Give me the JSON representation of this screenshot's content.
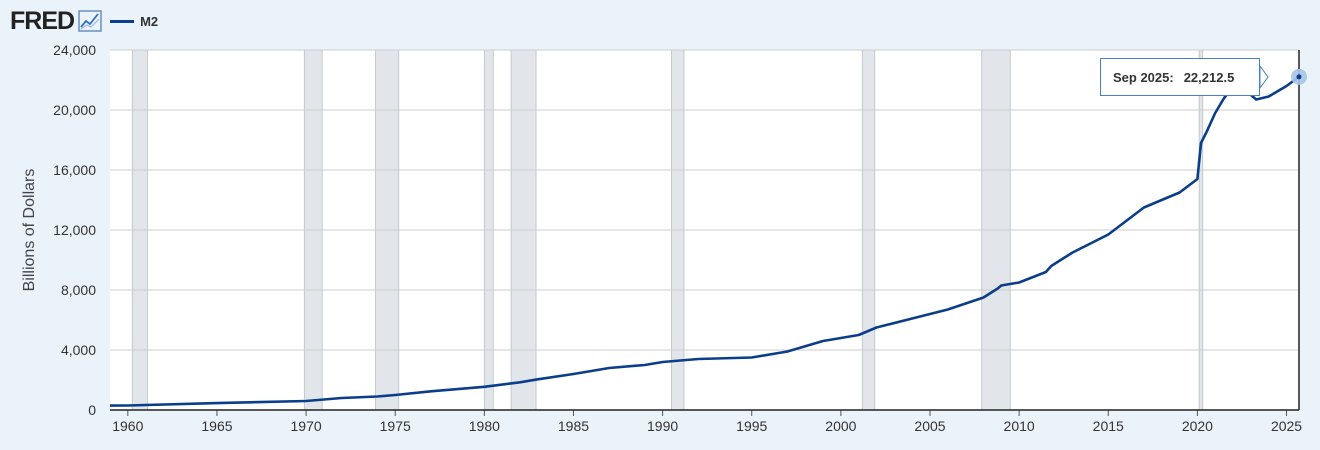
{
  "header": {
    "logo": "FRED",
    "series_label": "M2"
  },
  "tooltip": {
    "date": "Sep 2025:",
    "value": "22,212.5"
  },
  "colors": {
    "line": "#0b3e8a",
    "recession": "#e2e6ea",
    "background": "#eaf2fa"
  },
  "chart_data": {
    "type": "line",
    "title": "",
    "xlabel": "",
    "ylabel": "Billions of Dollars",
    "ylim": [
      0,
      24000
    ],
    "xlim": [
      1959.0,
      2025.7
    ],
    "yticks": [
      0,
      4000,
      8000,
      12000,
      16000,
      20000,
      24000
    ],
    "ytick_labels": [
      "0",
      "4,000",
      "8,000",
      "12,000",
      "16,000",
      "20,000",
      "24,000"
    ],
    "xticks": [
      1960,
      1965,
      1970,
      1975,
      1980,
      1985,
      1990,
      1995,
      2000,
      2005,
      2010,
      2015,
      2020,
      2025
    ],
    "xtick_labels": [
      "1960",
      "1965",
      "1970",
      "1975",
      "1980",
      "1985",
      "1990",
      "1995",
      "2000",
      "2005",
      "2010",
      "2015",
      "2020",
      "2025"
    ],
    "recessions": [
      [
        1960.25,
        1961.1
      ],
      [
        1969.9,
        1970.9
      ],
      [
        1973.9,
        1975.2
      ],
      [
        1980.0,
        1980.5
      ],
      [
        1981.5,
        1982.9
      ],
      [
        1990.5,
        1991.2
      ],
      [
        2001.2,
        2001.9
      ],
      [
        2007.9,
        2009.5
      ],
      [
        2020.1,
        2020.3
      ]
    ],
    "series": [
      {
        "name": "M2",
        "x": [
          1959.0,
          1960,
          1965,
          1970,
          1972,
          1974,
          1975,
          1977,
          1980,
          1982,
          1983,
          1985,
          1987,
          1989,
          1990,
          1992,
          1995,
          1997,
          1999,
          2001,
          2002,
          2004,
          2006,
          2008,
          2008.8,
          2009,
          2010,
          2011.5,
          2011.8,
          2013,
          2015,
          2016,
          2017,
          2018,
          2019,
          2020.0,
          2020.2,
          2020.5,
          2021,
          2021.5,
          2022,
          2022.3,
          2023,
          2023.3,
          2024,
          2025,
          2025.7
        ],
        "y": [
          290,
          300,
          460,
          600,
          800,
          900,
          1000,
          1250,
          1550,
          1850,
          2050,
          2400,
          2800,
          3000,
          3200,
          3400,
          3500,
          3900,
          4600,
          5000,
          5500,
          6100,
          6700,
          7500,
          8100,
          8300,
          8500,
          9200,
          9600,
          10500,
          11700,
          12600,
          13500,
          14000,
          14500,
          15400,
          17800,
          18500,
          19800,
          20800,
          21500,
          21700,
          21000,
          20700,
          20900,
          21600,
          22212.5
        ]
      }
    ],
    "data_labels": [
      {
        "x": "Sep 2025",
        "y": 22212.5,
        "label": "22,212.5"
      }
    ]
  }
}
